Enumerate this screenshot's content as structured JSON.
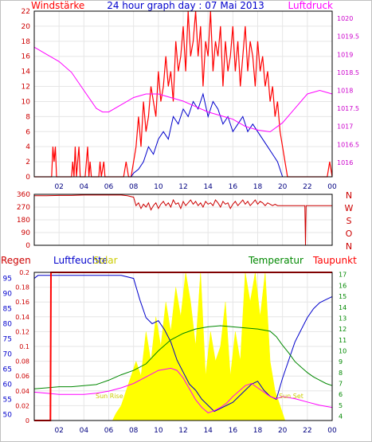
{
  "chart_data": [
    {
      "type": "line",
      "title": "24 hour graph day : 07 Mai 2013",
      "ylabel_left": "Windstärke",
      "ylabel_right": "Luftdruck",
      "x_ticks": [
        "02",
        "04",
        "06",
        "08",
        "10",
        "12",
        "14",
        "16",
        "18",
        "20",
        "22",
        "00"
      ],
      "ylim_left": [
        0,
        22
      ],
      "y_ticks_left": [
        0,
        2,
        4,
        6,
        8,
        10,
        12,
        14,
        16,
        18,
        20,
        22
      ],
      "ylim_right": [
        1015.6,
        1020.2
      ],
      "y_ticks_right": [
        1016,
        1016.5,
        1017,
        1017.5,
        1018,
        1018.5,
        1019,
        1019.5,
        1020
      ],
      "series": [
        {
          "role": "gust",
          "color": "#ff0000",
          "axis": "left",
          "x": [
            0,
            1.4,
            1.5,
            1.6,
            1.7,
            1.8,
            3.0,
            3.1,
            3.2,
            3.3,
            3.4,
            3.5,
            3.6,
            3.7,
            3.8,
            4.1,
            4.2,
            4.3,
            4.4,
            4.5,
            4.6,
            4.7,
            5.2,
            5.3,
            5.4,
            5.6,
            5.7,
            6.0,
            6.4,
            6.6,
            6.8,
            7.2,
            7.4,
            7.6,
            7.8,
            8.0,
            8.2,
            8.4,
            8.6,
            8.8,
            9.0,
            9.2,
            9.4,
            9.6,
            9.8,
            10.0,
            10.2,
            10.4,
            10.6,
            10.8,
            11.0,
            11.2,
            11.4,
            11.6,
            11.8,
            12.0,
            12.2,
            12.4,
            12.6,
            12.8,
            13.0,
            13.2,
            13.4,
            13.6,
            13.8,
            14.0,
            14.2,
            14.4,
            14.6,
            14.8,
            15.0,
            15.2,
            15.4,
            15.6,
            15.8,
            16.0,
            16.2,
            16.4,
            16.6,
            16.8,
            17.0,
            17.2,
            17.4,
            17.6,
            17.8,
            18.0,
            18.2,
            18.4,
            18.6,
            18.8,
            19.0,
            19.2,
            19.4,
            19.6,
            19.8,
            20.0,
            20.2,
            20.4,
            20.6,
            20.8,
            21.0,
            22.0,
            23.0,
            23.6,
            23.8,
            24.0
          ],
          "y": [
            0,
            0,
            4,
            2,
            4,
            0,
            0,
            2,
            0,
            4,
            0,
            2,
            4,
            0,
            0,
            0,
            2,
            4,
            0,
            2,
            0,
            0,
            0,
            2,
            0,
            2,
            0,
            0,
            0,
            0,
            0,
            0,
            2,
            0,
            0,
            2,
            4,
            8,
            4,
            10,
            6,
            8,
            12,
            10,
            8,
            14,
            10,
            12,
            16,
            12,
            14,
            10,
            18,
            14,
            16,
            20,
            14,
            22,
            16,
            18,
            22,
            16,
            20,
            12,
            18,
            16,
            22,
            14,
            18,
            16,
            20,
            12,
            18,
            14,
            16,
            20,
            14,
            18,
            12,
            16,
            20,
            14,
            18,
            16,
            12,
            18,
            14,
            16,
            12,
            14,
            10,
            12,
            8,
            10,
            6,
            4,
            2,
            0,
            0,
            0,
            0,
            0,
            0,
            0,
            2,
            0
          ]
        },
        {
          "role": "wind",
          "color": "#0000cc",
          "axis": "left",
          "x": [
            0,
            7.8,
            8.0,
            8.4,
            8.8,
            9.2,
            9.6,
            10.0,
            10.4,
            10.8,
            11.2,
            11.6,
            12.0,
            12.4,
            12.8,
            13.2,
            13.6,
            14.0,
            14.4,
            14.8,
            15.2,
            15.6,
            16.0,
            16.4,
            16.8,
            17.2,
            17.6,
            18.0,
            18.4,
            18.8,
            19.2,
            19.6,
            20.0,
            20.4,
            24.0
          ],
          "y": [
            0,
            0,
            0.5,
            1,
            2,
            4,
            3,
            5,
            6,
            5,
            8,
            7,
            9,
            8,
            10,
            9,
            11,
            8,
            10,
            9,
            7,
            8,
            6,
            7,
            8,
            6,
            7,
            6,
            5,
            4,
            3,
            2,
            0,
            0,
            0
          ]
        },
        {
          "role": "pressure",
          "color": "#ff00ff",
          "axis": "right",
          "x": [
            0,
            1,
            2,
            3,
            4,
            5,
            5.5,
            6,
            7,
            8,
            9,
            10,
            11,
            12,
            13,
            14,
            15,
            16,
            17,
            18,
            19,
            20,
            21,
            22,
            23,
            24
          ],
          "y": [
            1019.2,
            1019.0,
            1018.8,
            1018.5,
            1018.0,
            1017.5,
            1017.4,
            1017.4,
            1017.6,
            1017.8,
            1017.9,
            1017.9,
            1017.8,
            1017.7,
            1017.55,
            1017.4,
            1017.3,
            1017.2,
            1017.0,
            1016.9,
            1016.85,
            1017.1,
            1017.5,
            1017.9,
            1018.0,
            1017.9
          ]
        }
      ]
    },
    {
      "type": "line",
      "title": "",
      "x_ticks": [
        "02",
        "04",
        "06",
        "08",
        "10",
        "12",
        "14",
        "16",
        "18",
        "20",
        "22",
        "00"
      ],
      "ylim": [
        0,
        360
      ],
      "y_ticks": [
        0,
        90,
        180,
        270,
        360
      ],
      "right_labels": [
        "N",
        "W",
        "S",
        "O",
        "N"
      ],
      "series": [
        {
          "role": "direction",
          "color": "#cc0000",
          "x": [
            0,
            1,
            2,
            3,
            4,
            5,
            6,
            7,
            7.5,
            8,
            8.2,
            8.4,
            8.6,
            8.8,
            9,
            9.2,
            9.4,
            9.6,
            9.8,
            10,
            10.2,
            10.4,
            10.6,
            10.8,
            11,
            11.2,
            11.4,
            11.6,
            11.8,
            12,
            12.2,
            12.4,
            12.6,
            12.8,
            13,
            13.2,
            13.4,
            13.6,
            13.8,
            14,
            14.2,
            14.4,
            14.6,
            14.8,
            15,
            15.2,
            15.4,
            15.6,
            15.8,
            16,
            16.2,
            16.4,
            16.6,
            16.8,
            17,
            17.2,
            17.4,
            17.6,
            17.8,
            18,
            18.2,
            18.4,
            18.6,
            18.8,
            19,
            19.2,
            19.4,
            19.6,
            19.8,
            20,
            20.5,
            21,
            21.5,
            21.8,
            21.85,
            21.9,
            22,
            23,
            24
          ],
          "y": [
            350,
            350,
            352,
            352,
            355,
            355,
            355,
            355,
            350,
            340,
            280,
            300,
            260,
            290,
            270,
            300,
            250,
            280,
            300,
            260,
            290,
            310,
            280,
            300,
            270,
            320,
            290,
            300,
            260,
            310,
            280,
            300,
            320,
            290,
            310,
            280,
            300,
            270,
            310,
            290,
            300,
            280,
            320,
            300,
            270,
            310,
            290,
            300,
            260,
            290,
            310,
            280,
            300,
            320,
            290,
            310,
            280,
            300,
            320,
            290,
            310,
            300,
            280,
            300,
            290,
            280,
            290,
            280,
            280,
            280,
            280,
            280,
            280,
            280,
            0,
            280,
            280,
            280,
            280
          ]
        }
      ]
    },
    {
      "type": "area",
      "title": "",
      "labels": [
        "Regen",
        "Luftfeuchte",
        "Solar",
        "Temperatur",
        "Taupunkt"
      ],
      "x_ticks": [
        "02",
        "04",
        "06",
        "08",
        "10",
        "12",
        "14",
        "16",
        "18",
        "20",
        "22",
        "00"
      ],
      "ylim_humidity": [
        48,
        97
      ],
      "y_ticks_humidity": [
        50,
        55,
        60,
        65,
        70,
        75,
        80,
        85,
        90,
        95
      ],
      "ylim_rain": [
        0,
        0.2
      ],
      "y_ticks_rain": [
        0,
        0.02,
        0.04,
        0.06,
        0.08,
        0.1,
        0.12,
        0.14,
        0.16,
        0.18,
        0.2
      ],
      "ylim_temp": [
        3.6,
        17.2
      ],
      "y_ticks_temp": [
        4,
        5,
        6,
        7,
        8,
        9,
        10,
        11,
        12,
        13,
        14,
        15,
        16,
        17
      ],
      "annotations": [
        "Sun Rise",
        "Sun Set"
      ],
      "series": [
        {
          "role": "solar",
          "color": "#ffff00",
          "x": [
            0,
            6.3,
            6.6,
            7,
            7.4,
            7.8,
            8.2,
            8.6,
            9,
            9.4,
            9.8,
            10.2,
            10.6,
            11,
            11.4,
            11.8,
            12.2,
            12.6,
            13,
            13.4,
            13.8,
            14.2,
            14.6,
            15,
            15.4,
            15.8,
            16.2,
            16.6,
            17,
            17.4,
            17.8,
            18.2,
            18.6,
            19,
            19.4,
            19.8,
            20.2,
            24
          ],
          "y": [
            0,
            0,
            0.01,
            0.02,
            0.04,
            0.06,
            0.08,
            0.06,
            0.12,
            0.08,
            0.14,
            0.1,
            0.16,
            0.12,
            0.18,
            0.14,
            0.2,
            0.16,
            0.1,
            0.2,
            0.06,
            0.12,
            0.08,
            0.1,
            0.16,
            0.06,
            0.12,
            0.08,
            0.2,
            0.16,
            0.2,
            0.14,
            0.2,
            0.08,
            0.04,
            0.02,
            0,
            0
          ]
        },
        {
          "role": "humidity",
          "color": "#0000cc",
          "x": [
            0,
            0.3,
            1,
            2,
            3,
            4,
            5,
            6,
            7,
            8,
            8.5,
            9,
            9.5,
            10,
            10.5,
            11,
            11.5,
            12,
            12.5,
            13,
            13.5,
            14,
            14.5,
            15,
            15.5,
            16,
            16.5,
            17,
            17.5,
            18,
            18.5,
            19,
            19.5,
            20,
            20.5,
            21,
            21.5,
            22,
            22.5,
            23,
            23.5,
            24
          ],
          "y": [
            95,
            96,
            96,
            96,
            96,
            96,
            96,
            96,
            96,
            95,
            88,
            82,
            80,
            81,
            78,
            74,
            68,
            64,
            60,
            58,
            55,
            53,
            51,
            52,
            53,
            54,
            56,
            58,
            60,
            61,
            58,
            56,
            55,
            62,
            68,
            74,
            78,
            82,
            85,
            87,
            88,
            89
          ]
        },
        {
          "role": "temperature",
          "color": "#008800",
          "x": [
            0,
            1,
            2,
            3,
            4,
            5,
            6,
            7,
            8,
            9,
            10,
            11,
            12,
            13,
            14,
            15,
            16,
            17,
            18,
            19,
            19.5,
            20,
            20.5,
            21,
            21.5,
            22,
            22.5,
            23,
            23.5,
            24
          ],
          "y": [
            6.5,
            6.6,
            6.7,
            6.7,
            6.8,
            6.9,
            7.3,
            7.8,
            8.2,
            8.8,
            10.0,
            11.0,
            11.6,
            12.0,
            12.2,
            12.3,
            12.2,
            12.1,
            12.0,
            11.8,
            11.3,
            10.5,
            9.8,
            9.0,
            8.5,
            8.0,
            7.6,
            7.3,
            7.0,
            6.8
          ]
        },
        {
          "role": "dewpoint",
          "color": "#ff00ff",
          "x": [
            0,
            1,
            2,
            3,
            4,
            5,
            6,
            7,
            8,
            9,
            10,
            11,
            11.5,
            12,
            12.5,
            13,
            13.5,
            14,
            14.5,
            15,
            15.5,
            16,
            16.5,
            17,
            17.5,
            18,
            18.5,
            19,
            19.5,
            20,
            21,
            22,
            23,
            24
          ],
          "y": [
            6.2,
            6.1,
            6.0,
            6.0,
            6.0,
            6.1,
            6.3,
            6.6,
            7.0,
            7.6,
            8.2,
            8.4,
            8.2,
            7.5,
            6.5,
            5.5,
            4.8,
            4.3,
            4.5,
            4.8,
            5.2,
            5.8,
            6.3,
            6.8,
            7.0,
            6.6,
            6.2,
            5.8,
            5.6,
            5.8,
            5.6,
            5.3,
            5.0,
            4.8
          ]
        },
        {
          "role": "rain",
          "color": "#ff0000",
          "x": [
            0,
            1.3,
            1.35,
            24
          ],
          "y": [
            0,
            0,
            0.2,
            0.2
          ]
        }
      ]
    }
  ]
}
